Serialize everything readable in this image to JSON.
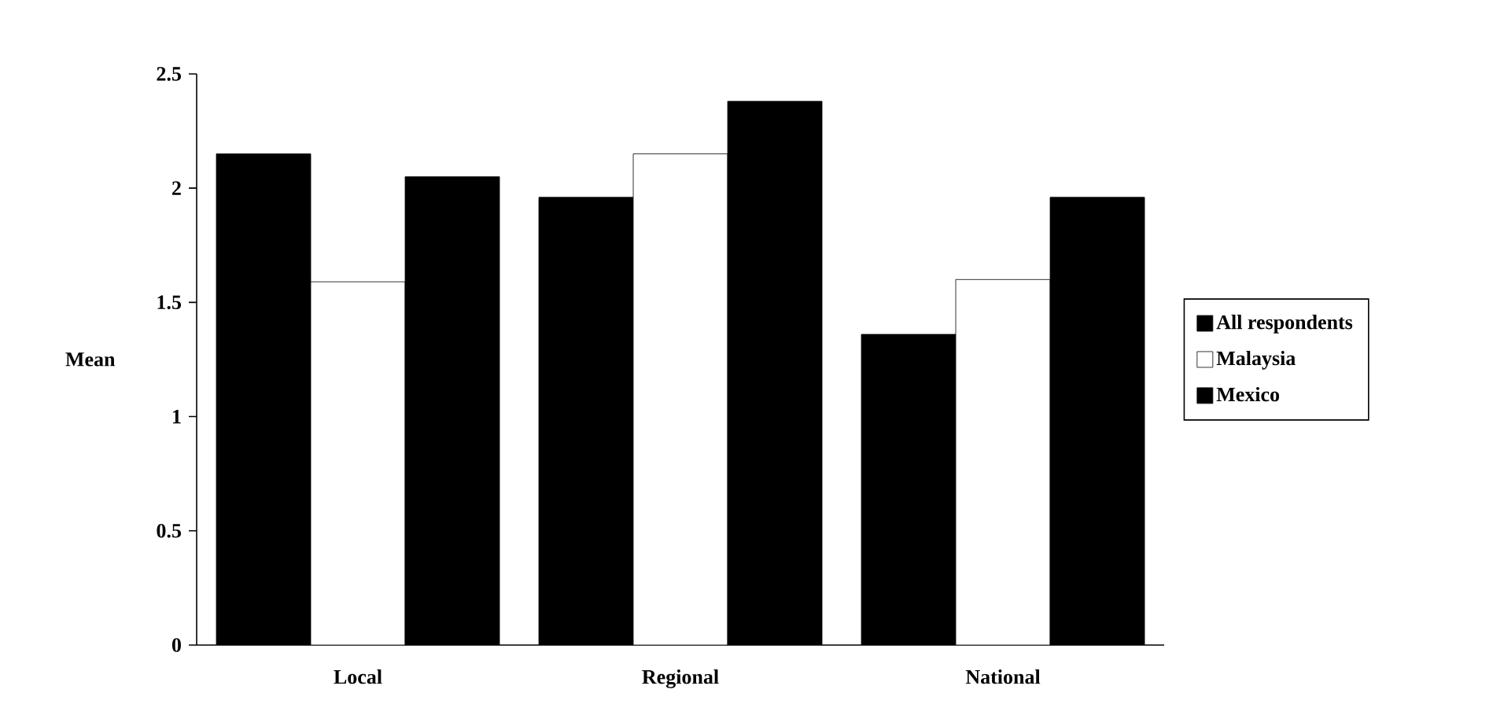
{
  "chart_data": {
    "type": "bar",
    "ylabel": "Mean",
    "categories": [
      "Local",
      "Regional",
      "National"
    ],
    "series": [
      {
        "name": "All respondents",
        "color": "#000000",
        "values": [
          2.15,
          1.96,
          1.36
        ]
      },
      {
        "name": "Malaysia",
        "color": "#ffffff",
        "values": [
          1.59,
          2.15,
          1.6
        ]
      },
      {
        "name": "Mexico",
        "color": "#000000",
        "values": [
          2.05,
          2.38,
          1.96
        ]
      }
    ],
    "ylim": [
      0,
      2.5
    ],
    "yticks": [
      0,
      0.5,
      1,
      1.5,
      2,
      2.5
    ],
    "grid": false,
    "legend": "right"
  }
}
